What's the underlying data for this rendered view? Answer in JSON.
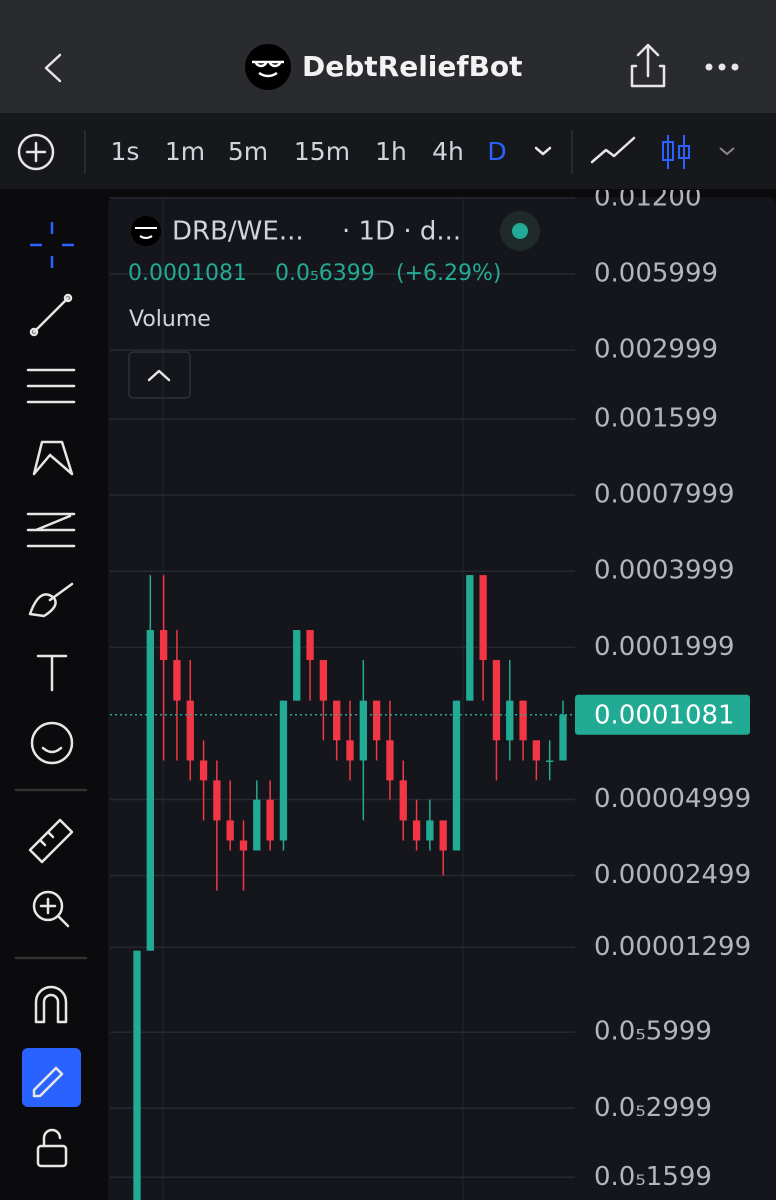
{
  "header": {
    "title": "DebtReliefBot"
  },
  "toolbar": {
    "intervals": [
      "1s",
      "1m",
      "5m",
      "15m",
      "1h",
      "4h",
      "D"
    ]
  },
  "legend": {
    "symbol": "DRB/WE...",
    "interval": "· 1D · d...",
    "price": "0.0001081",
    "change": "0.0₅6399",
    "change_percent": "(+6.29%)",
    "study": "Volume"
  },
  "chart_data": {
    "type": "candlestick",
    "log_scale": true,
    "grid": true,
    "up_color": "#22ab94",
    "down_color": "#f23645",
    "ylim": [
      1.3e-06,
      0.0121
    ],
    "yticks": [
      {
        "value": 0.012,
        "label": "0.01200"
      },
      0.005999,
      0.002999,
      0.001599,
      0.0007999,
      0.0003999,
      0.0001999,
      4.999e-05,
      2.499e-05,
      1.299e-05,
      {
        "value": 5.999e-06,
        "label": "0.0₅5999"
      },
      {
        "value": 2.999e-06,
        "label": "0.0₅2999"
      },
      {
        "value": 1.599e-06,
        "label": "0.0₅1599"
      }
    ],
    "last_price": 0.0001081,
    "ohlc": [
      [
        1.3e-06,
        1.26e-05,
        1.3e-06,
        1.26e-05
      ],
      [
        1.26e-05,
        0.000386,
        1.26e-05,
        0.000234
      ],
      [
        0.000234,
        0.000386,
        7.13e-05,
        0.000178
      ],
      [
        0.000178,
        0.000234,
        7.13e-05,
        0.000123
      ],
      [
        0.000123,
        0.000178,
        5.95e-05,
        7.13e-05
      ],
      [
        7.13e-05,
        8.57e-05,
        4.13e-05,
        5.95e-05
      ],
      [
        5.95e-05,
        7.13e-05,
        2.18e-05,
        4.13e-05
      ],
      [
        4.13e-05,
        5.95e-05,
        3.14e-05,
        3.44e-05
      ],
      [
        3.44e-05,
        4.13e-05,
        2.18e-05,
        3.14e-05
      ],
      [
        3.14e-05,
        5.95e-05,
        3.14e-05,
        4.99e-05
      ],
      [
        4.99e-05,
        5.95e-05,
        3.14e-05,
        3.44e-05
      ],
      [
        3.44e-05,
        0.000123,
        3.14e-05,
        0.000123
      ],
      [
        0.000123,
        0.000234,
        0.000123,
        0.000234
      ],
      [
        0.000234,
        0.000234,
        0.000123,
        0.000178
      ],
      [
        0.000178,
        0.000178,
        8.57e-05,
        0.000123
      ],
      [
        0.000123,
        0.000123,
        7.13e-05,
        8.57e-05
      ],
      [
        8.57e-05,
        0.000123,
        5.95e-05,
        7.13e-05
      ],
      [
        7.13e-05,
        0.000178,
        4.13e-05,
        0.000123
      ],
      [
        0.000123,
        0.000123,
        7.13e-05,
        8.57e-05
      ],
      [
        8.57e-05,
        0.000123,
        4.99e-05,
        5.95e-05
      ],
      [
        5.95e-05,
        7.13e-05,
        3.44e-05,
        4.13e-05
      ],
      [
        4.13e-05,
        4.99e-05,
        3.14e-05,
        3.44e-05
      ],
      [
        3.44e-05,
        4.99e-05,
        3.14e-05,
        4.13e-05
      ],
      [
        4.13e-05,
        4.13e-05,
        2.5e-05,
        3.14e-05
      ],
      [
        3.14e-05,
        0.000123,
        3.14e-05,
        0.000123
      ],
      [
        0.000123,
        0.000386,
        0.000123,
        0.000386
      ],
      [
        0.000386,
        0.000386,
        0.000123,
        0.000178
      ],
      [
        0.000178,
        0.000178,
        5.95e-05,
        8.57e-05
      ],
      [
        8.57e-05,
        0.000178,
        7.13e-05,
        0.000123
      ],
      [
        0.000123,
        0.000123,
        7.13e-05,
        8.57e-05
      ],
      [
        8.57e-05,
        8.57e-05,
        5.95e-05,
        7.13e-05
      ],
      [
        7.13e-05,
        8.57e-05,
        5.95e-05,
        7.13e-05
      ],
      [
        7.13e-05,
        0.000123,
        7.13e-05,
        0.0001081
      ]
    ]
  }
}
